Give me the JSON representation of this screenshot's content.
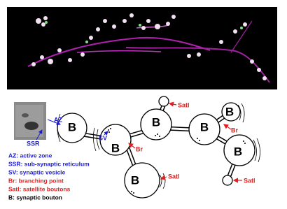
{
  "diagram": {
    "az": "AZ",
    "ssr": "SSR",
    "sv": "SV",
    "boutons": [
      "B",
      "B",
      "B",
      "B",
      "B",
      "B",
      "B"
    ],
    "satellites": [
      "Satl",
      "Satl",
      "Satl"
    ],
    "branches": [
      "Br",
      "Br"
    ]
  },
  "legend": [
    "AZ: active zone",
    "SSR: sub-synaptic reticulum",
    "SV: synaptic vesicle",
    "Br: branching point",
    "Satl: satellite boutons",
    "B: synaptic bouton"
  ]
}
